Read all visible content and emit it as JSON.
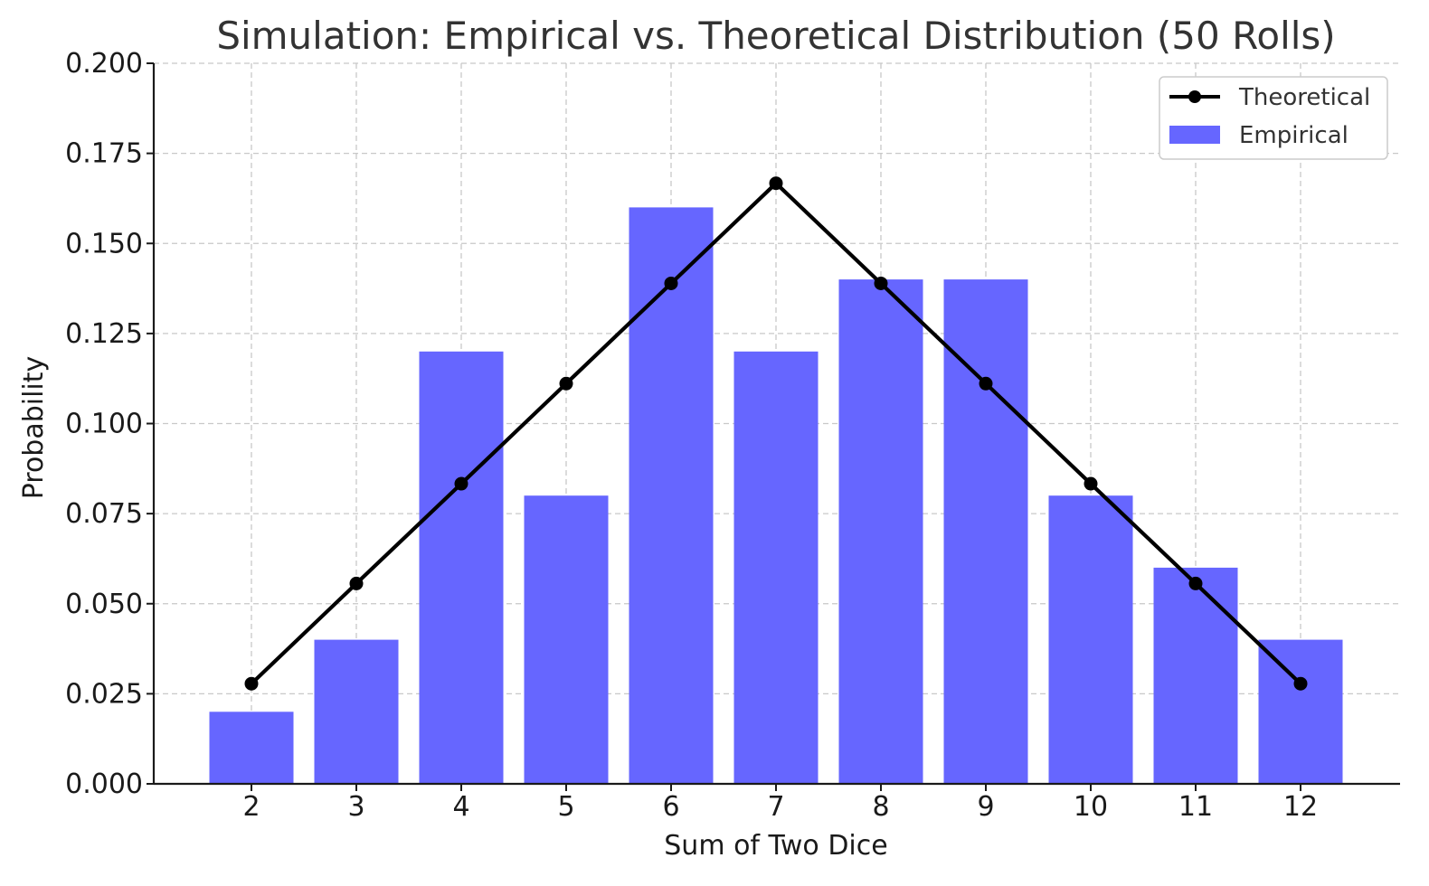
{
  "chart_data": {
    "type": "bar",
    "title": "Simulation: Empirical vs. Theoretical Distribution (50 Rolls)",
    "xlabel": "Sum of Two Dice",
    "ylabel": "Probability",
    "categories": [
      "2",
      "3",
      "4",
      "5",
      "6",
      "7",
      "8",
      "9",
      "10",
      "11",
      "12"
    ],
    "ylim": [
      0,
      0.2
    ],
    "yticks": [
      "0.000",
      "0.025",
      "0.050",
      "0.075",
      "0.100",
      "0.125",
      "0.150",
      "0.175",
      "0.200"
    ],
    "grid": true,
    "legend_position": "top-right",
    "series": [
      {
        "name": "Theoretical",
        "kind": "line",
        "color": "#000000",
        "values": [
          0.0278,
          0.0556,
          0.0833,
          0.1111,
          0.1389,
          0.1667,
          0.1389,
          0.1111,
          0.0833,
          0.0556,
          0.0278
        ]
      },
      {
        "name": "Empirical",
        "kind": "bar",
        "color": "#6666ff",
        "values": [
          0.02,
          0.04,
          0.12,
          0.08,
          0.16,
          0.12,
          0.14,
          0.14,
          0.08,
          0.06,
          0.04
        ]
      }
    ]
  }
}
